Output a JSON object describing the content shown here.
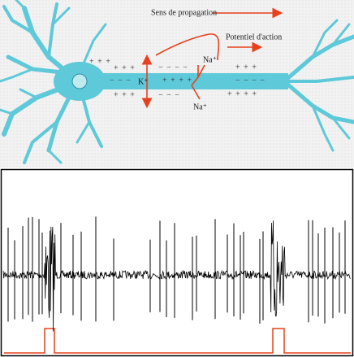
{
  "diagram": {
    "propagation_label": "Sens de propagation",
    "action_potential_label": "Potentiel d'action",
    "potassium_label": "K⁺",
    "sodium_labels": [
      "Na⁺",
      "Na⁺"
    ],
    "charges": [
      "+ + +",
      "− − − −",
      "+ + + +",
      "− − −",
      "+ + +",
      "+ + +",
      "− − −",
      "− − − −",
      "+ + + +",
      "+ + +"
    ]
  }
}
